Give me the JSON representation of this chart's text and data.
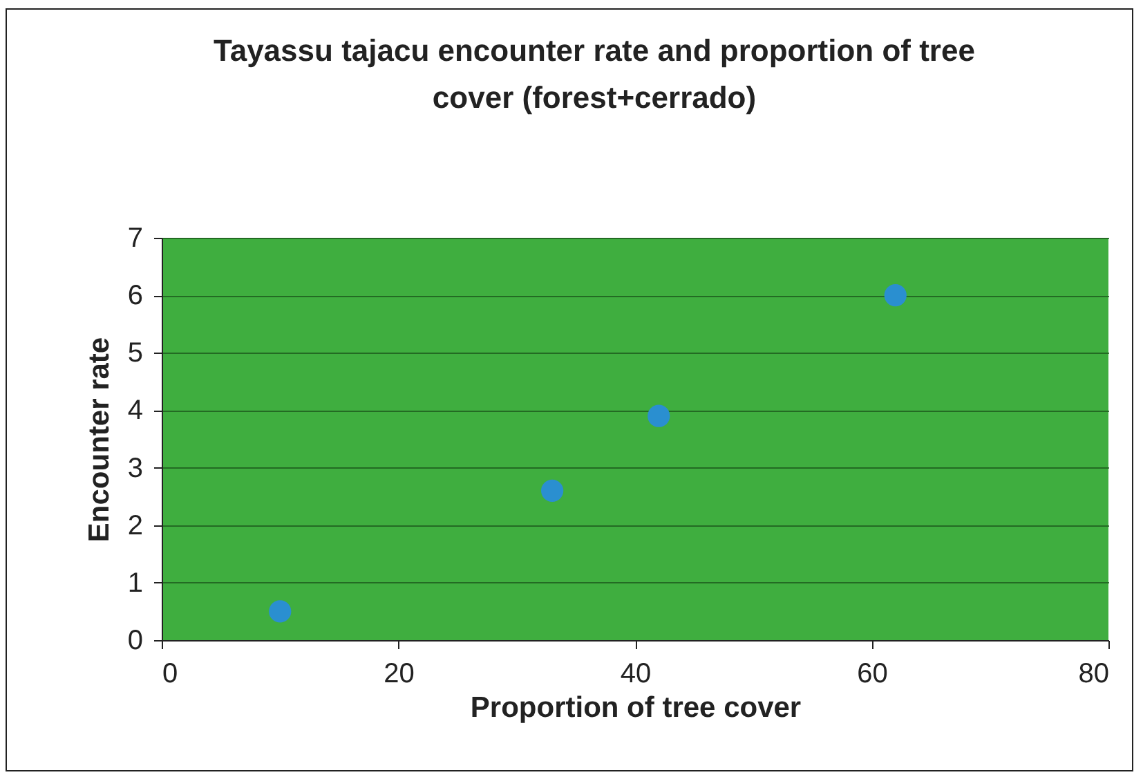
{
  "chart_data": {
    "type": "scatter",
    "title": "Tayassu tajacu encounter rate and proportion of tree cover (forest+cerrado)",
    "xlabel": "Proportion of tree cover",
    "ylabel": "Encounter  rate",
    "x": [
      10,
      33,
      42,
      62
    ],
    "series": [
      {
        "color": "#2a8fd0",
        "values": [
          0.5,
          2.6,
          3.9,
          6.0
        ]
      }
    ],
    "xlim": [
      0,
      80
    ],
    "xticks": [
      0,
      20,
      40,
      60,
      80
    ],
    "ylim": [
      0,
      7
    ],
    "yticks": [
      0,
      1,
      2,
      3,
      4,
      5,
      6,
      7
    ],
    "grid": "y",
    "marker": "circle"
  }
}
